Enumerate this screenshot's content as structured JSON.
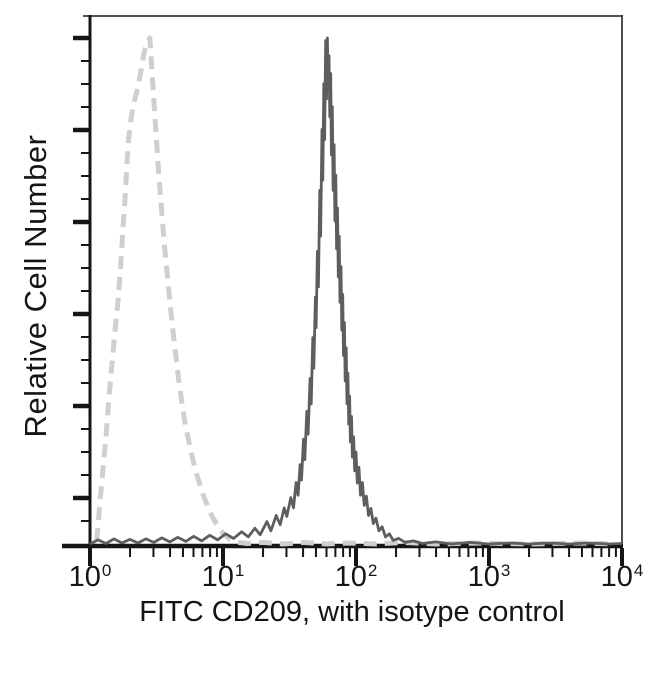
{
  "figure": {
    "background": "#ffffff",
    "frame_color": "#3a3a3a",
    "axis_color": "#161616"
  },
  "chart_data": {
    "type": "line",
    "subtype": "flow-cytometry-histogram-overlay",
    "title": "",
    "xlabel": "FITC CD209, with isotype control",
    "ylabel": "Relative Cell Number",
    "x_scale": "log10",
    "xlim_log10": [
      0,
      4
    ],
    "ylim_relative": [
      0,
      1
    ],
    "grid": false,
    "legend": "none",
    "x_ticks": [
      {
        "base": "10",
        "exp": "0",
        "log10": 0
      },
      {
        "base": "10",
        "exp": "1",
        "log10": 1
      },
      {
        "base": "10",
        "exp": "2",
        "log10": 2
      },
      {
        "base": "10",
        "exp": "3",
        "log10": 3
      },
      {
        "base": "10",
        "exp": "4",
        "log10": 4
      }
    ],
    "x_minor_tick_multiples": [
      2,
      3,
      4,
      5,
      6,
      7,
      8,
      9
    ],
    "y_axis": {
      "major_tick_count": 6,
      "minor_ticks_per_major": 3,
      "labels": "none"
    },
    "series": [
      {
        "name": "isotype control",
        "line_style": "dashed",
        "color": "#cfcfcf",
        "stroke_width": 5,
        "dash_pattern": [
          13,
          8
        ],
        "peak_x_value": 2.8,
        "points_log10x_yrel": [
          [
            0.05,
            0.01
          ],
          [
            0.06,
            0.04
          ],
          [
            0.07,
            0.07
          ],
          [
            0.08,
            0.1
          ],
          [
            0.09,
            0.13
          ],
          [
            0.1,
            0.16
          ],
          [
            0.11,
            0.185
          ],
          [
            0.12,
            0.215
          ],
          [
            0.13,
            0.25
          ],
          [
            0.14,
            0.285
          ],
          [
            0.15,
            0.315
          ],
          [
            0.16,
            0.345
          ],
          [
            0.17,
            0.37
          ],
          [
            0.18,
            0.4
          ],
          [
            0.19,
            0.43
          ],
          [
            0.2,
            0.455
          ],
          [
            0.21,
            0.48
          ],
          [
            0.22,
            0.515
          ],
          [
            0.23,
            0.55
          ],
          [
            0.24,
            0.59
          ],
          [
            0.25,
            0.635
          ],
          [
            0.26,
            0.67
          ],
          [
            0.27,
            0.715
          ],
          [
            0.28,
            0.76
          ],
          [
            0.29,
            0.8
          ],
          [
            0.305,
            0.835
          ],
          [
            0.32,
            0.86
          ],
          [
            0.335,
            0.878
          ],
          [
            0.35,
            0.893
          ],
          [
            0.365,
            0.912
          ],
          [
            0.38,
            0.93
          ],
          [
            0.395,
            0.955
          ],
          [
            0.41,
            0.975
          ],
          [
            0.43,
            0.988
          ],
          [
            0.45,
            1.0
          ],
          [
            0.458,
            0.968
          ],
          [
            0.465,
            0.938
          ],
          [
            0.472,
            0.908
          ],
          [
            0.48,
            0.878
          ],
          [
            0.488,
            0.848
          ],
          [
            0.495,
            0.818
          ],
          [
            0.503,
            0.788
          ],
          [
            0.51,
            0.758
          ],
          [
            0.518,
            0.728
          ],
          [
            0.527,
            0.698
          ],
          [
            0.536,
            0.668
          ],
          [
            0.545,
            0.638
          ],
          [
            0.555,
            0.608
          ],
          [
            0.565,
            0.578
          ],
          [
            0.576,
            0.548
          ],
          [
            0.587,
            0.518
          ],
          [
            0.598,
            0.488
          ],
          [
            0.61,
            0.458
          ],
          [
            0.622,
            0.428
          ],
          [
            0.635,
            0.398
          ],
          [
            0.648,
            0.368
          ],
          [
            0.662,
            0.338
          ],
          [
            0.677,
            0.308
          ],
          [
            0.693,
            0.278
          ],
          [
            0.71,
            0.25
          ],
          [
            0.73,
            0.222
          ],
          [
            0.752,
            0.195
          ],
          [
            0.775,
            0.168
          ],
          [
            0.8,
            0.143
          ],
          [
            0.827,
            0.12
          ],
          [
            0.855,
            0.098
          ],
          [
            0.885,
            0.078
          ],
          [
            0.915,
            0.06
          ],
          [
            0.95,
            0.044
          ],
          [
            0.985,
            0.03
          ],
          [
            1.02,
            0.02
          ],
          [
            1.06,
            0.012
          ],
          [
            1.11,
            0.007
          ],
          [
            1.18,
            0.005
          ],
          [
            1.3,
            0.007
          ],
          [
            1.45,
            0.004
          ],
          [
            1.6,
            0.007
          ],
          [
            1.78,
            0.004
          ],
          [
            1.95,
            0.006
          ],
          [
            2.15,
            0.004
          ],
          [
            2.35,
            0.007
          ],
          [
            2.6,
            0.004
          ],
          [
            2.9,
            0.006
          ],
          [
            3.3,
            0.004
          ],
          [
            3.7,
            0.006
          ],
          [
            3.95,
            0.004
          ]
        ]
      },
      {
        "name": "FITC CD209",
        "line_style": "solid",
        "color": "#5e5e5e",
        "stroke_width": 2.8,
        "dash_pattern": null,
        "peak_x_value": 60,
        "points_log10x_yrel": [
          [
            0.0,
            0.004
          ],
          [
            0.06,
            0.012
          ],
          [
            0.12,
            0.005
          ],
          [
            0.18,
            0.014
          ],
          [
            0.24,
            0.006
          ],
          [
            0.3,
            0.013
          ],
          [
            0.36,
            0.006
          ],
          [
            0.42,
            0.014
          ],
          [
            0.48,
            0.007
          ],
          [
            0.54,
            0.016
          ],
          [
            0.6,
            0.008
          ],
          [
            0.66,
            0.017
          ],
          [
            0.72,
            0.009
          ],
          [
            0.78,
            0.019
          ],
          [
            0.84,
            0.01
          ],
          [
            0.9,
            0.021
          ],
          [
            0.96,
            0.012
          ],
          [
            1.02,
            0.024
          ],
          [
            1.08,
            0.015
          ],
          [
            1.14,
            0.028
          ],
          [
            1.19,
            0.018
          ],
          [
            1.24,
            0.035
          ],
          [
            1.28,
            0.022
          ],
          [
            1.33,
            0.048
          ],
          [
            1.36,
            0.03
          ],
          [
            1.4,
            0.06
          ],
          [
            1.43,
            0.042
          ],
          [
            1.46,
            0.075
          ],
          [
            1.48,
            0.058
          ],
          [
            1.51,
            0.095
          ],
          [
            1.53,
            0.075
          ],
          [
            1.55,
            0.125
          ],
          [
            1.565,
            0.1
          ],
          [
            1.58,
            0.16
          ],
          [
            1.59,
            0.13
          ],
          [
            1.605,
            0.21
          ],
          [
            1.615,
            0.17
          ],
          [
            1.63,
            0.265
          ],
          [
            1.64,
            0.22
          ],
          [
            1.655,
            0.33
          ],
          [
            1.663,
            0.28
          ],
          [
            1.675,
            0.41
          ],
          [
            1.683,
            0.35
          ],
          [
            1.695,
            0.49
          ],
          [
            1.7,
            0.43
          ],
          [
            1.71,
            0.58
          ],
          [
            1.717,
            0.51
          ],
          [
            1.728,
            0.7
          ],
          [
            1.734,
            0.61
          ],
          [
            1.744,
            0.82
          ],
          [
            1.75,
            0.72
          ],
          [
            1.758,
            0.91
          ],
          [
            1.764,
            0.8
          ],
          [
            1.772,
            0.995
          ],
          [
            1.778,
            0.88
          ],
          [
            1.785,
            1.0
          ],
          [
            1.79,
            0.9
          ],
          [
            1.797,
            0.965
          ],
          [
            1.803,
            0.845
          ],
          [
            1.81,
            0.93
          ],
          [
            1.815,
            0.77
          ],
          [
            1.822,
            0.865
          ],
          [
            1.828,
            0.7
          ],
          [
            1.835,
            0.79
          ],
          [
            1.841,
            0.64
          ],
          [
            1.848,
            0.73
          ],
          [
            1.854,
            0.585
          ],
          [
            1.861,
            0.665
          ],
          [
            1.867,
            0.53
          ],
          [
            1.874,
            0.61
          ],
          [
            1.88,
            0.48
          ],
          [
            1.887,
            0.55
          ],
          [
            1.893,
            0.425
          ],
          [
            1.9,
            0.495
          ],
          [
            1.906,
            0.375
          ],
          [
            1.913,
            0.44
          ],
          [
            1.919,
            0.325
          ],
          [
            1.926,
            0.39
          ],
          [
            1.932,
            0.28
          ],
          [
            1.939,
            0.34
          ],
          [
            1.945,
            0.24
          ],
          [
            1.952,
            0.295
          ],
          [
            1.958,
            0.205
          ],
          [
            1.966,
            0.255
          ],
          [
            1.973,
            0.175
          ],
          [
            1.982,
            0.215
          ],
          [
            1.99,
            0.148
          ],
          [
            2.0,
            0.185
          ],
          [
            2.01,
            0.124
          ],
          [
            2.022,
            0.155
          ],
          [
            2.034,
            0.1
          ],
          [
            2.048,
            0.125
          ],
          [
            2.062,
            0.08
          ],
          [
            2.078,
            0.098
          ],
          [
            2.094,
            0.06
          ],
          [
            2.112,
            0.074
          ],
          [
            2.13,
            0.044
          ],
          [
            2.15,
            0.055
          ],
          [
            2.172,
            0.03
          ],
          [
            2.196,
            0.038
          ],
          [
            2.222,
            0.018
          ],
          [
            2.25,
            0.024
          ],
          [
            2.28,
            0.011
          ],
          [
            2.32,
            0.015
          ],
          [
            2.37,
            0.007
          ],
          [
            2.43,
            0.01
          ],
          [
            2.5,
            0.005
          ],
          [
            2.6,
            0.008
          ],
          [
            2.72,
            0.004
          ],
          [
            2.85,
            0.007
          ],
          [
            3.0,
            0.004
          ],
          [
            3.15,
            0.006
          ],
          [
            3.3,
            0.004
          ],
          [
            3.45,
            0.006
          ],
          [
            3.6,
            0.004
          ],
          [
            3.75,
            0.006
          ],
          [
            3.9,
            0.004
          ],
          [
            4.0,
            0.005
          ]
        ]
      }
    ]
  }
}
